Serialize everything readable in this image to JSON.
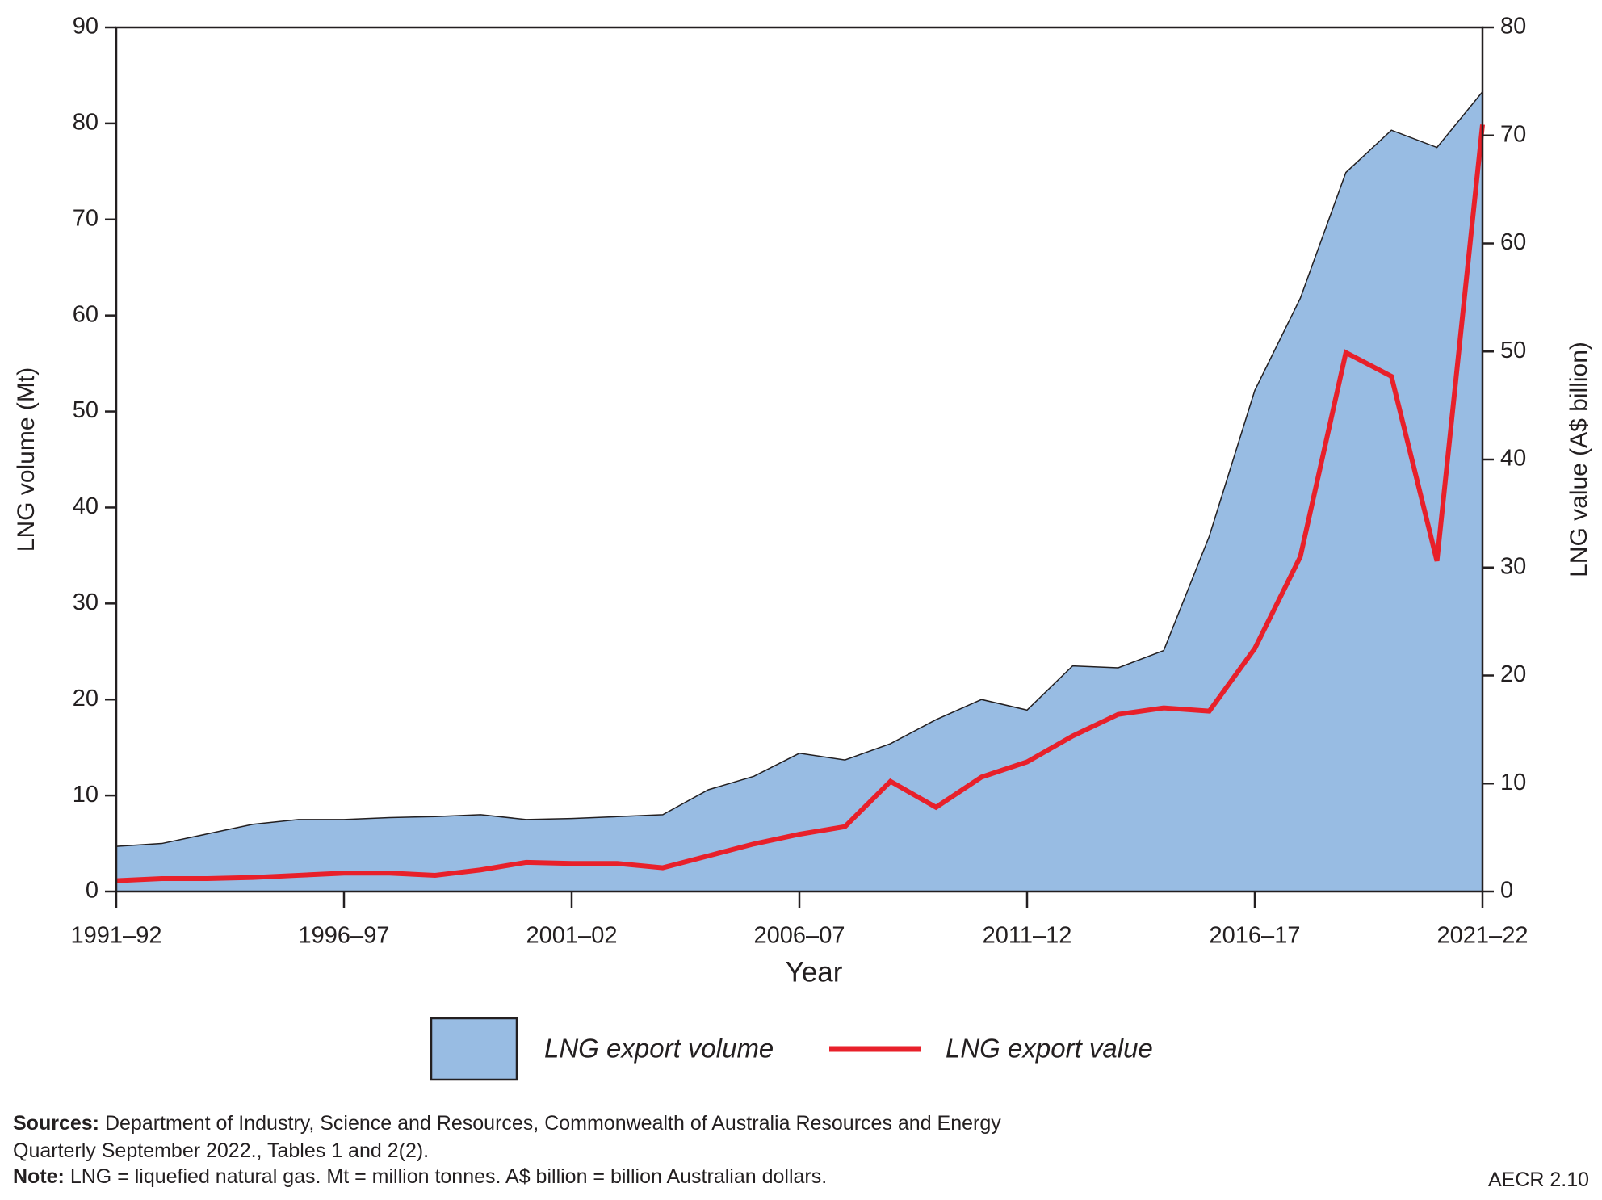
{
  "chart_data": {
    "type": "area-line",
    "x_label": "Year",
    "y_label": "LNG volume (Mt)",
    "y2_label": "LNG value (A$ billion)",
    "categories": [
      "1991–92",
      null,
      null,
      null,
      null,
      "1996–97",
      null,
      null,
      null,
      null,
      "2001–02",
      null,
      null,
      null,
      null,
      "2006–07",
      null,
      null,
      null,
      null,
      "2011–12",
      null,
      null,
      null,
      null,
      "2016–17",
      null,
      null,
      null,
      null,
      "2021–22"
    ],
    "series": [
      {
        "name": "LNG export volume",
        "type": "area",
        "color": "#98bce3",
        "axis": "y",
        "values": [
          4.7,
          5.0,
          6.0,
          7.0,
          7.5,
          7.5,
          7.7,
          7.8,
          8.0,
          7.5,
          7.6,
          7.8,
          8.0,
          10.6,
          12.0,
          14.4,
          13.7,
          15.4,
          17.9,
          20.0,
          18.9,
          23.5,
          23.3,
          25.1,
          37.0,
          52.2,
          61.8,
          74.9,
          79.3,
          77.5,
          83.3
        ]
      },
      {
        "name": "LNG export value",
        "type": "line",
        "color": "#e8202a",
        "axis": "y2",
        "values": [
          1.0,
          1.2,
          1.2,
          1.3,
          1.5,
          1.7,
          1.7,
          1.5,
          2.0,
          2.7,
          2.6,
          2.6,
          2.2,
          3.3,
          4.4,
          5.3,
          6.0,
          10.2,
          7.8,
          10.6,
          12.0,
          14.4,
          16.4,
          17.0,
          16.7,
          22.5,
          31.0,
          49.9,
          47.7,
          30.6,
          71.0
        ]
      }
    ],
    "ylim": [
      0,
      90
    ],
    "yticks": [
      0,
      10,
      20,
      30,
      40,
      50,
      60,
      70,
      80,
      90
    ],
    "y2lim": [
      0,
      80
    ],
    "y2ticks": [
      0,
      10,
      20,
      30,
      40,
      50,
      60,
      70,
      80
    ],
    "grid": false
  },
  "footer": {
    "sources_label": "Sources:",
    "sources_text": "Department of Industry, Science and Resources, Commonwealth of Australia Resources and Energy Quarterly September 2022., Tables 1 and 2(2).",
    "note_label": "Note:",
    "note_text": "LNG = liquefied natural gas. Mt = million tonnes. A$ billion = billion Australian dollars.",
    "figure_id": "AECR 2.10"
  }
}
